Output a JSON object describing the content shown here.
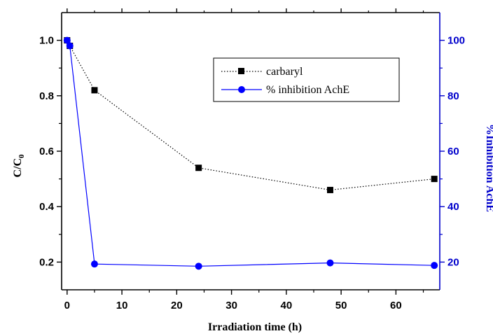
{
  "chart_data": {
    "type": "line",
    "xlabel": "Irradiation time (h)",
    "ylabel_main": "C/C",
    "ylabel_sub": "0",
    "ylabel_right": "%Inhibition AchE",
    "xlim": [
      -1,
      68
    ],
    "ylim_left": [
      0.1,
      1.1
    ],
    "ylim_right": [
      10,
      110
    ],
    "x_ticks": [
      0,
      10,
      20,
      30,
      40,
      50,
      60
    ],
    "y_ticks_left": [
      0.2,
      0.4,
      0.6,
      0.8,
      1.0
    ],
    "y_tick_labels_left": [
      "0.2",
      "0.4",
      "0.6",
      "0.8",
      "1.0"
    ],
    "y_ticks_right": [
      20,
      40,
      60,
      80,
      100
    ],
    "legend_position": "top-right",
    "colors": {
      "carbaryl": "#000000",
      "inhibition": "#0000ff",
      "right_axis": "#0000cc"
    },
    "series": [
      {
        "name": "carbaryl",
        "axis": "left",
        "marker": "square",
        "line": "dotted",
        "x": [
          0,
          0.5,
          5,
          24,
          48,
          67
        ],
        "y": [
          1.0,
          0.98,
          0.82,
          0.54,
          0.46,
          0.5
        ]
      },
      {
        "name": "% inhibition AchE",
        "axis": "right",
        "marker": "circle",
        "line": "solid",
        "x": [
          0,
          0.5,
          5,
          24,
          48,
          67
        ],
        "y": [
          100,
          98,
          19.3,
          18.5,
          19.7,
          18.8
        ]
      }
    ]
  }
}
